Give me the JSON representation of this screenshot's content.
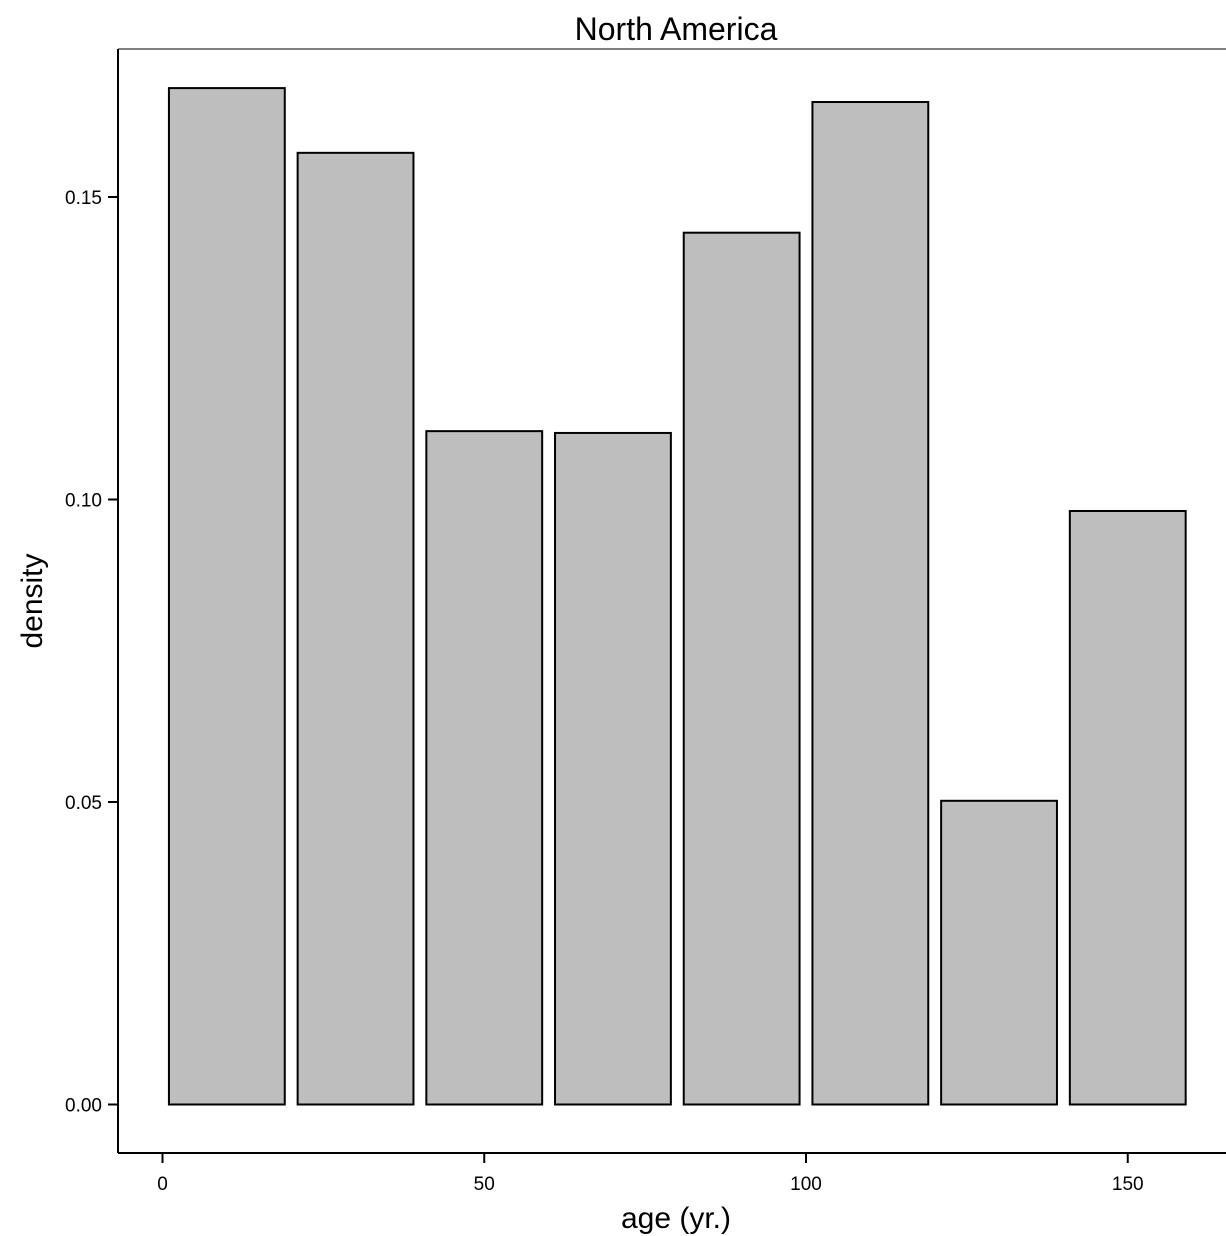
{
  "chart_data": {
    "type": "bar",
    "title": "North America",
    "xlabel": "age (yr.)",
    "ylabel": "density",
    "xlim": [
      -7,
      165
    ],
    "ylim": [
      -0.008,
      0.175
    ],
    "x_ticks": [
      0,
      50,
      100,
      150
    ],
    "x_tick_labels": [
      "0",
      "50",
      "100",
      "150"
    ],
    "y_ticks": [
      0.0,
      0.05,
      0.1,
      0.15
    ],
    "y_tick_labels": [
      "0.00",
      "0.05",
      "0.10",
      "0.15"
    ],
    "bins": [
      {
        "x0": 1,
        "x1": 19,
        "value": 0.168
      },
      {
        "x0": 21,
        "x1": 39,
        "value": 0.1573
      },
      {
        "x0": 41,
        "x1": 59,
        "value": 0.1113
      },
      {
        "x0": 61,
        "x1": 79,
        "value": 0.111
      },
      {
        "x0": 81,
        "x1": 99,
        "value": 0.1441
      },
      {
        "x0": 101,
        "x1": 119,
        "value": 0.1657
      },
      {
        "x0": 121,
        "x1": 139,
        "value": 0.0502
      },
      {
        "x0": 141,
        "x1": 159,
        "value": 0.0981
      }
    ],
    "bar_fill": "#bebebe",
    "bar_stroke": "#000000",
    "grid": false
  }
}
